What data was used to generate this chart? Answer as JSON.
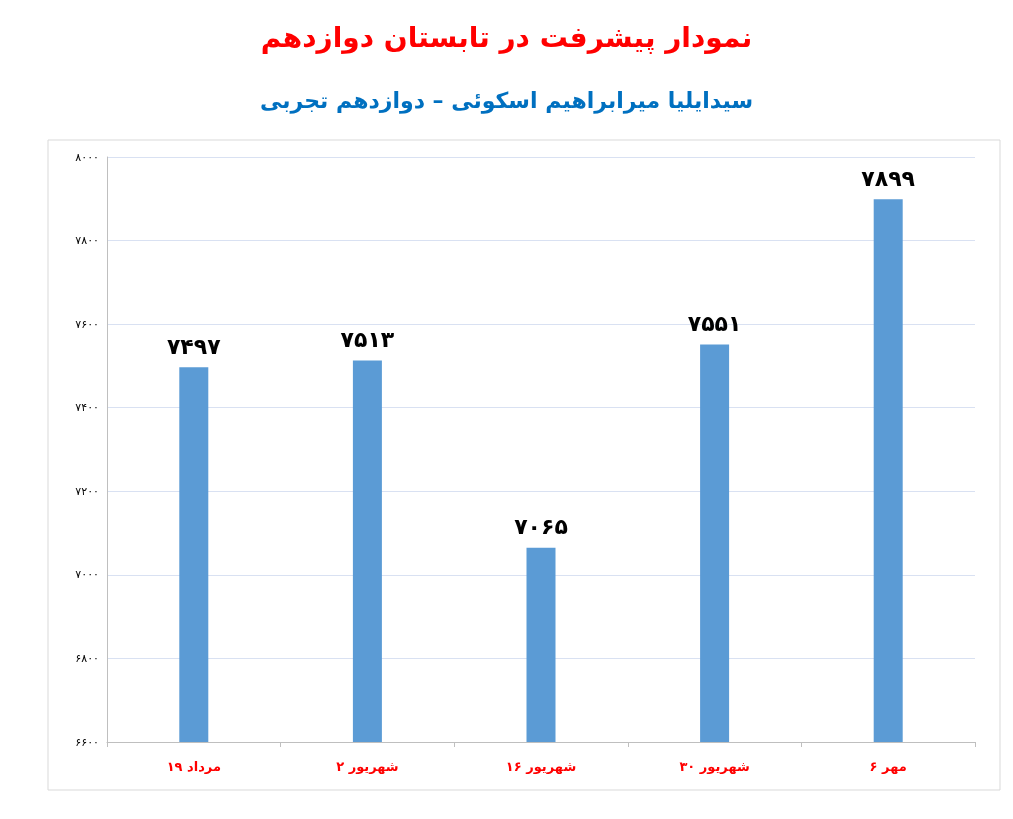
{
  "chart_data": {
    "type": "bar",
    "title": "نمودار پیشرفت در تابستان دوازدهم",
    "subtitle": "سیدایلیا میرابراهیم اسکوئی – دوازدهم تجربی",
    "categories": [
      "۱۹ مرداد",
      "۲ شهریور",
      "۱۶ شهریور",
      "۳۰ شهریور",
      "۶ مهر"
    ],
    "values": [
      7497,
      7513,
      7065,
      7551,
      7899
    ],
    "value_labels": [
      "۷۴۹۷",
      "۷۵۱۳",
      "۷۰۶۵",
      "۷۵۵۱",
      "۷۸۹۹"
    ],
    "color": "#5b9bd5",
    "ylim": [
      6600,
      8000
    ],
    "yticks": [
      {
        "value": 6600,
        "label": "۶۶۰۰"
      },
      {
        "value": 6800,
        "label": "۶۸۰۰"
      },
      {
        "value": 7000,
        "label": "۷۰۰۰"
      },
      {
        "value": 7200,
        "label": "۷۲۰۰"
      },
      {
        "value": 7400,
        "label": "۷۴۰۰"
      },
      {
        "value": 7600,
        "label": "۷۶۰۰"
      },
      {
        "value": 7800,
        "label": "۷۸۰۰"
      },
      {
        "value": 8000,
        "label": "۸۰۰۰"
      }
    ],
    "grid": "y"
  }
}
